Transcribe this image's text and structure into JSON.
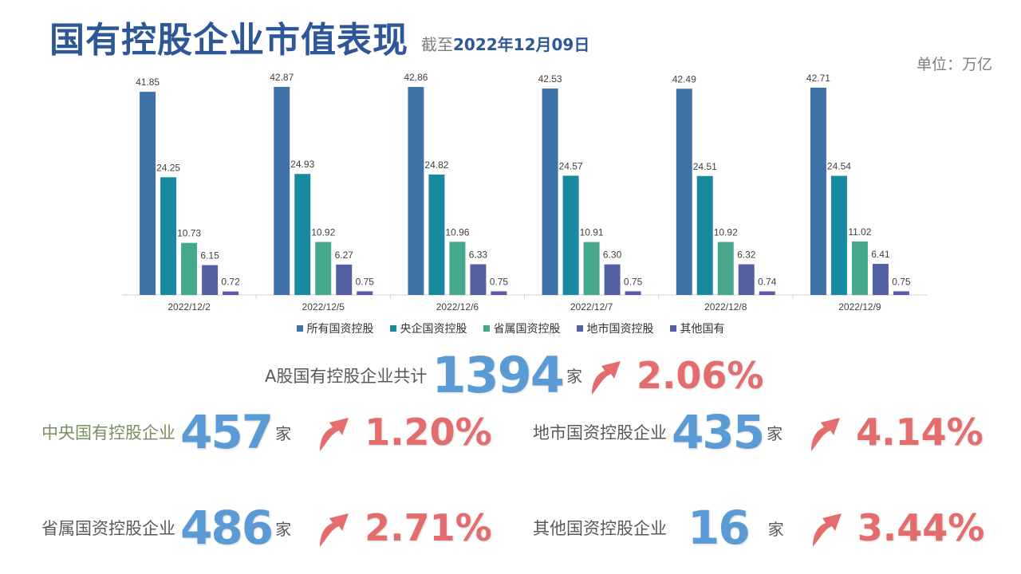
{
  "header": {
    "title": "国有控股企业市值表现",
    "date_prefix": "截至",
    "date_value": "2022年12月09日",
    "unit": "单位：万亿"
  },
  "colors": {
    "title": "#2e5797",
    "number": "#5b9bd5",
    "percent": "#e36c6c"
  },
  "chart_data": {
    "type": "bar",
    "categories": [
      "2022/12/2",
      "2022/12/5",
      "2022/12/6",
      "2022/12/7",
      "2022/12/8",
      "2022/12/9"
    ],
    "series": [
      {
        "name": "所有国资控股",
        "color": "#3e72a8",
        "values": [
          41.85,
          42.87,
          42.86,
          42.53,
          42.49,
          42.71
        ]
      },
      {
        "name": "央企国资控股",
        "color": "#178aa0",
        "values": [
          24.25,
          24.93,
          24.82,
          24.57,
          24.51,
          24.54
        ]
      },
      {
        "name": "省属国资控股",
        "color": "#45a88d",
        "values": [
          10.73,
          10.92,
          10.96,
          10.91,
          10.92,
          11.02
        ]
      },
      {
        "name": "地市国资控股",
        "color": "#5560a4",
        "values": [
          6.15,
          6.27,
          6.33,
          6.3,
          6.32,
          6.41
        ]
      },
      {
        "name": "其他国有",
        "color": "#5a5aa8",
        "values": [
          0.72,
          0.75,
          0.75,
          0.75,
          0.74,
          0.75
        ]
      }
    ],
    "ylim": [
      0,
      45
    ],
    "legend": "bottom",
    "grid": false
  },
  "stats": {
    "total": {
      "label": "A股国有控股企业共计",
      "value": "1394",
      "suffix": "家",
      "pct": "2.06%"
    },
    "central": {
      "label": "中央国有控股企业",
      "value": "457",
      "suffix": "家",
      "pct": "1.20%"
    },
    "city": {
      "label": "地市国资控股企业",
      "value": "435",
      "suffix": "家",
      "pct": "4.14%"
    },
    "province": {
      "label": "省属国资控股企业",
      "value": "486",
      "suffix": "家",
      "pct": "2.71%"
    },
    "other": {
      "label": "其他国资控股企业",
      "value": "16",
      "suffix": "家",
      "pct": "3.44%"
    }
  }
}
